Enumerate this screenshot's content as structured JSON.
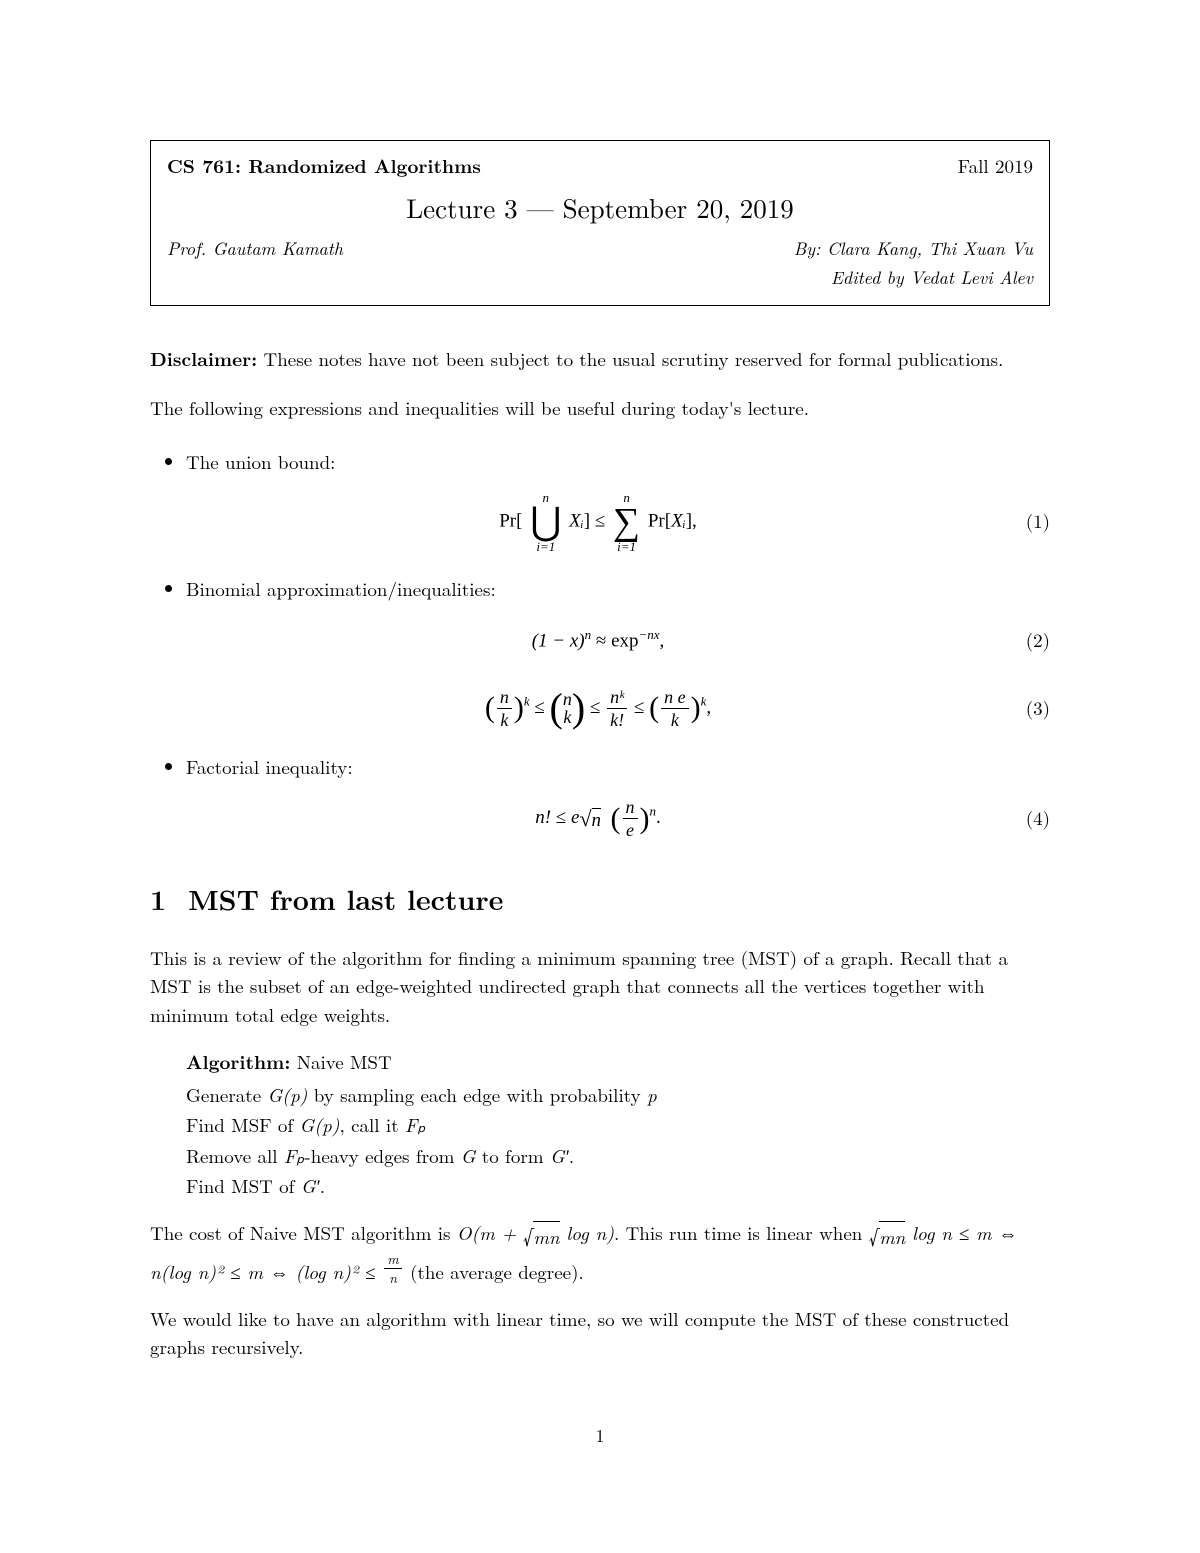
{
  "header": {
    "course": "CS 761: Randomized Algorithms",
    "term": "Fall 2019",
    "lecture_title": "Lecture 3 — September 20, 2019",
    "prof": "Prof. Gautam Kamath",
    "by": "By: Clara Kang, Thi Xuan Vu",
    "edited": "Edited by Vedat Levi Alev"
  },
  "disclaimer": {
    "label": "Disclaimer:",
    "text": " These notes have not been subject to the usual scrutiny reserved for formal publications."
  },
  "intro": "The following expressions and inequalities will be useful during today's lecture.",
  "bullets": {
    "union": "The union bound:",
    "binom": "Binomial approximation/inequalities:",
    "factorial": "Factorial inequality:"
  },
  "eqs": {
    "eq1": {
      "num": "(1)"
    },
    "eq2": {
      "num": "(2)"
    },
    "eq3": {
      "num": "(3)"
    },
    "eq4": {
      "num": "(4)"
    }
  },
  "section1": {
    "num": "1",
    "title": "MST from last lecture",
    "p1": "This is a review of the algorithm for finding a minimum spanning tree (MST) of a graph. Recall that a MST is the subset of an edge-weighted undirected graph that connects all the vertices together with minimum total edge weights.",
    "algo_label": "Algorithm:",
    "algo_name": " Naive MST",
    "algo_l1_a": "Generate ",
    "algo_l1_b": " by sampling each edge with probability ",
    "algo_l2_a": "Find MSF of ",
    "algo_l2_b": ", call it ",
    "algo_l3_a": "Remove all ",
    "algo_l3_b": "-heavy edges from ",
    "algo_l3_c": " to form ",
    "algo_l4": "Find MST of ",
    "cost_p_a": "The cost of Naive MST algorithm is ",
    "cost_p_b": ". This run time is linear when ",
    "cost_p_c": " (the average degree).",
    "p3": "We would like to have an algorithm with linear time, so we will compute the MST of these constructed graphs recursively."
  },
  "pagenum": "1",
  "math": {
    "Pr": "Pr",
    "n": "n",
    "i1": "i=1",
    "Xi": "Xᵢ",
    "le": " ≤ ",
    "sum": "∑",
    "union": "⋃",
    "lbrack": "[",
    "rbrack": "]",
    "comma": ",",
    "oneMinusX": "(1 − x)",
    "approx": " ≈ ",
    "exp": "exp",
    "negnx": "−nx",
    "k": "k",
    "nk": "n",
    "nfact": "n!",
    "kfact": "k!",
    "ne": "n e",
    "e": "e",
    "sqrt_n": "n",
    "dot": ".",
    "Gp": "G(p)",
    "p": "p",
    "Fp": "Fₚ",
    "G": "G",
    "Gprime": "G′",
    "bigO": "O(m + ",
    "mn": "mn",
    "logn": " log n)",
    "sqrt_mn_logn_le": " log n ≤ ",
    "m_iff": "m ⇔ n(log n)² ≤ m ⇔ (log n)² ≤ ",
    "m_over_n_num": "m",
    "m_over_n_den": "n",
    "nkpow": "nᵏ",
    "radical": "√"
  }
}
